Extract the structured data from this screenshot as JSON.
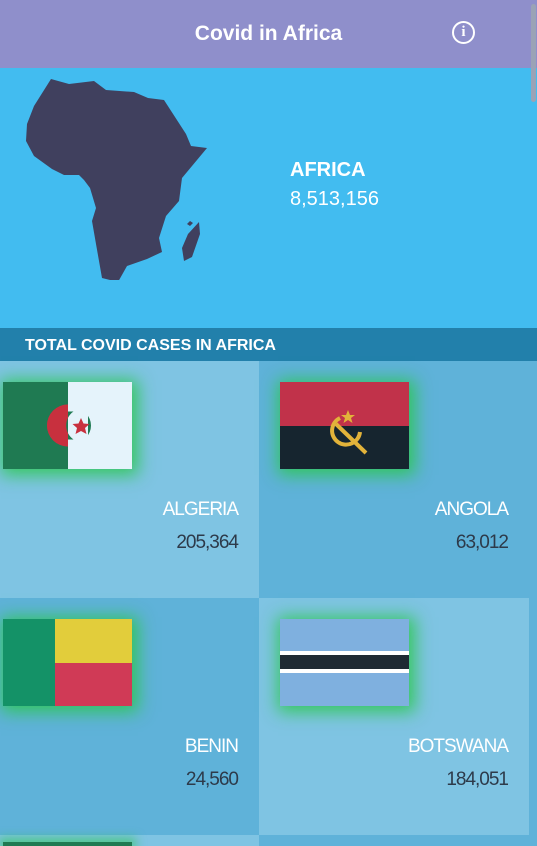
{
  "app": {
    "title": "Covid in Africa",
    "info_icon": "info-icon"
  },
  "continent": {
    "name": "AFRICA",
    "total": "8,513,156",
    "map_icon": "africa-map-icon"
  },
  "section": {
    "title": "TOTAL COVID CASES IN AFRICA"
  },
  "countries": [
    {
      "name": "ALGERIA",
      "cases": "205,364",
      "flag": "algeria-flag"
    },
    {
      "name": "ANGOLA",
      "cases": "63,012",
      "flag": "angola-flag"
    },
    {
      "name": "BENIN",
      "cases": "24,560",
      "flag": "benin-flag"
    },
    {
      "name": "BOTSWANA",
      "cases": "184,051",
      "flag": "botswana-flag"
    }
  ],
  "colors": {
    "titlebar": "#8f8fcb",
    "hero": "#42bcf0",
    "section_header": "#2280ab",
    "card_light": "#7fc4e3",
    "card_dark": "#5fb2d9",
    "map": "#40405e",
    "flag_glow": "#28c846"
  }
}
